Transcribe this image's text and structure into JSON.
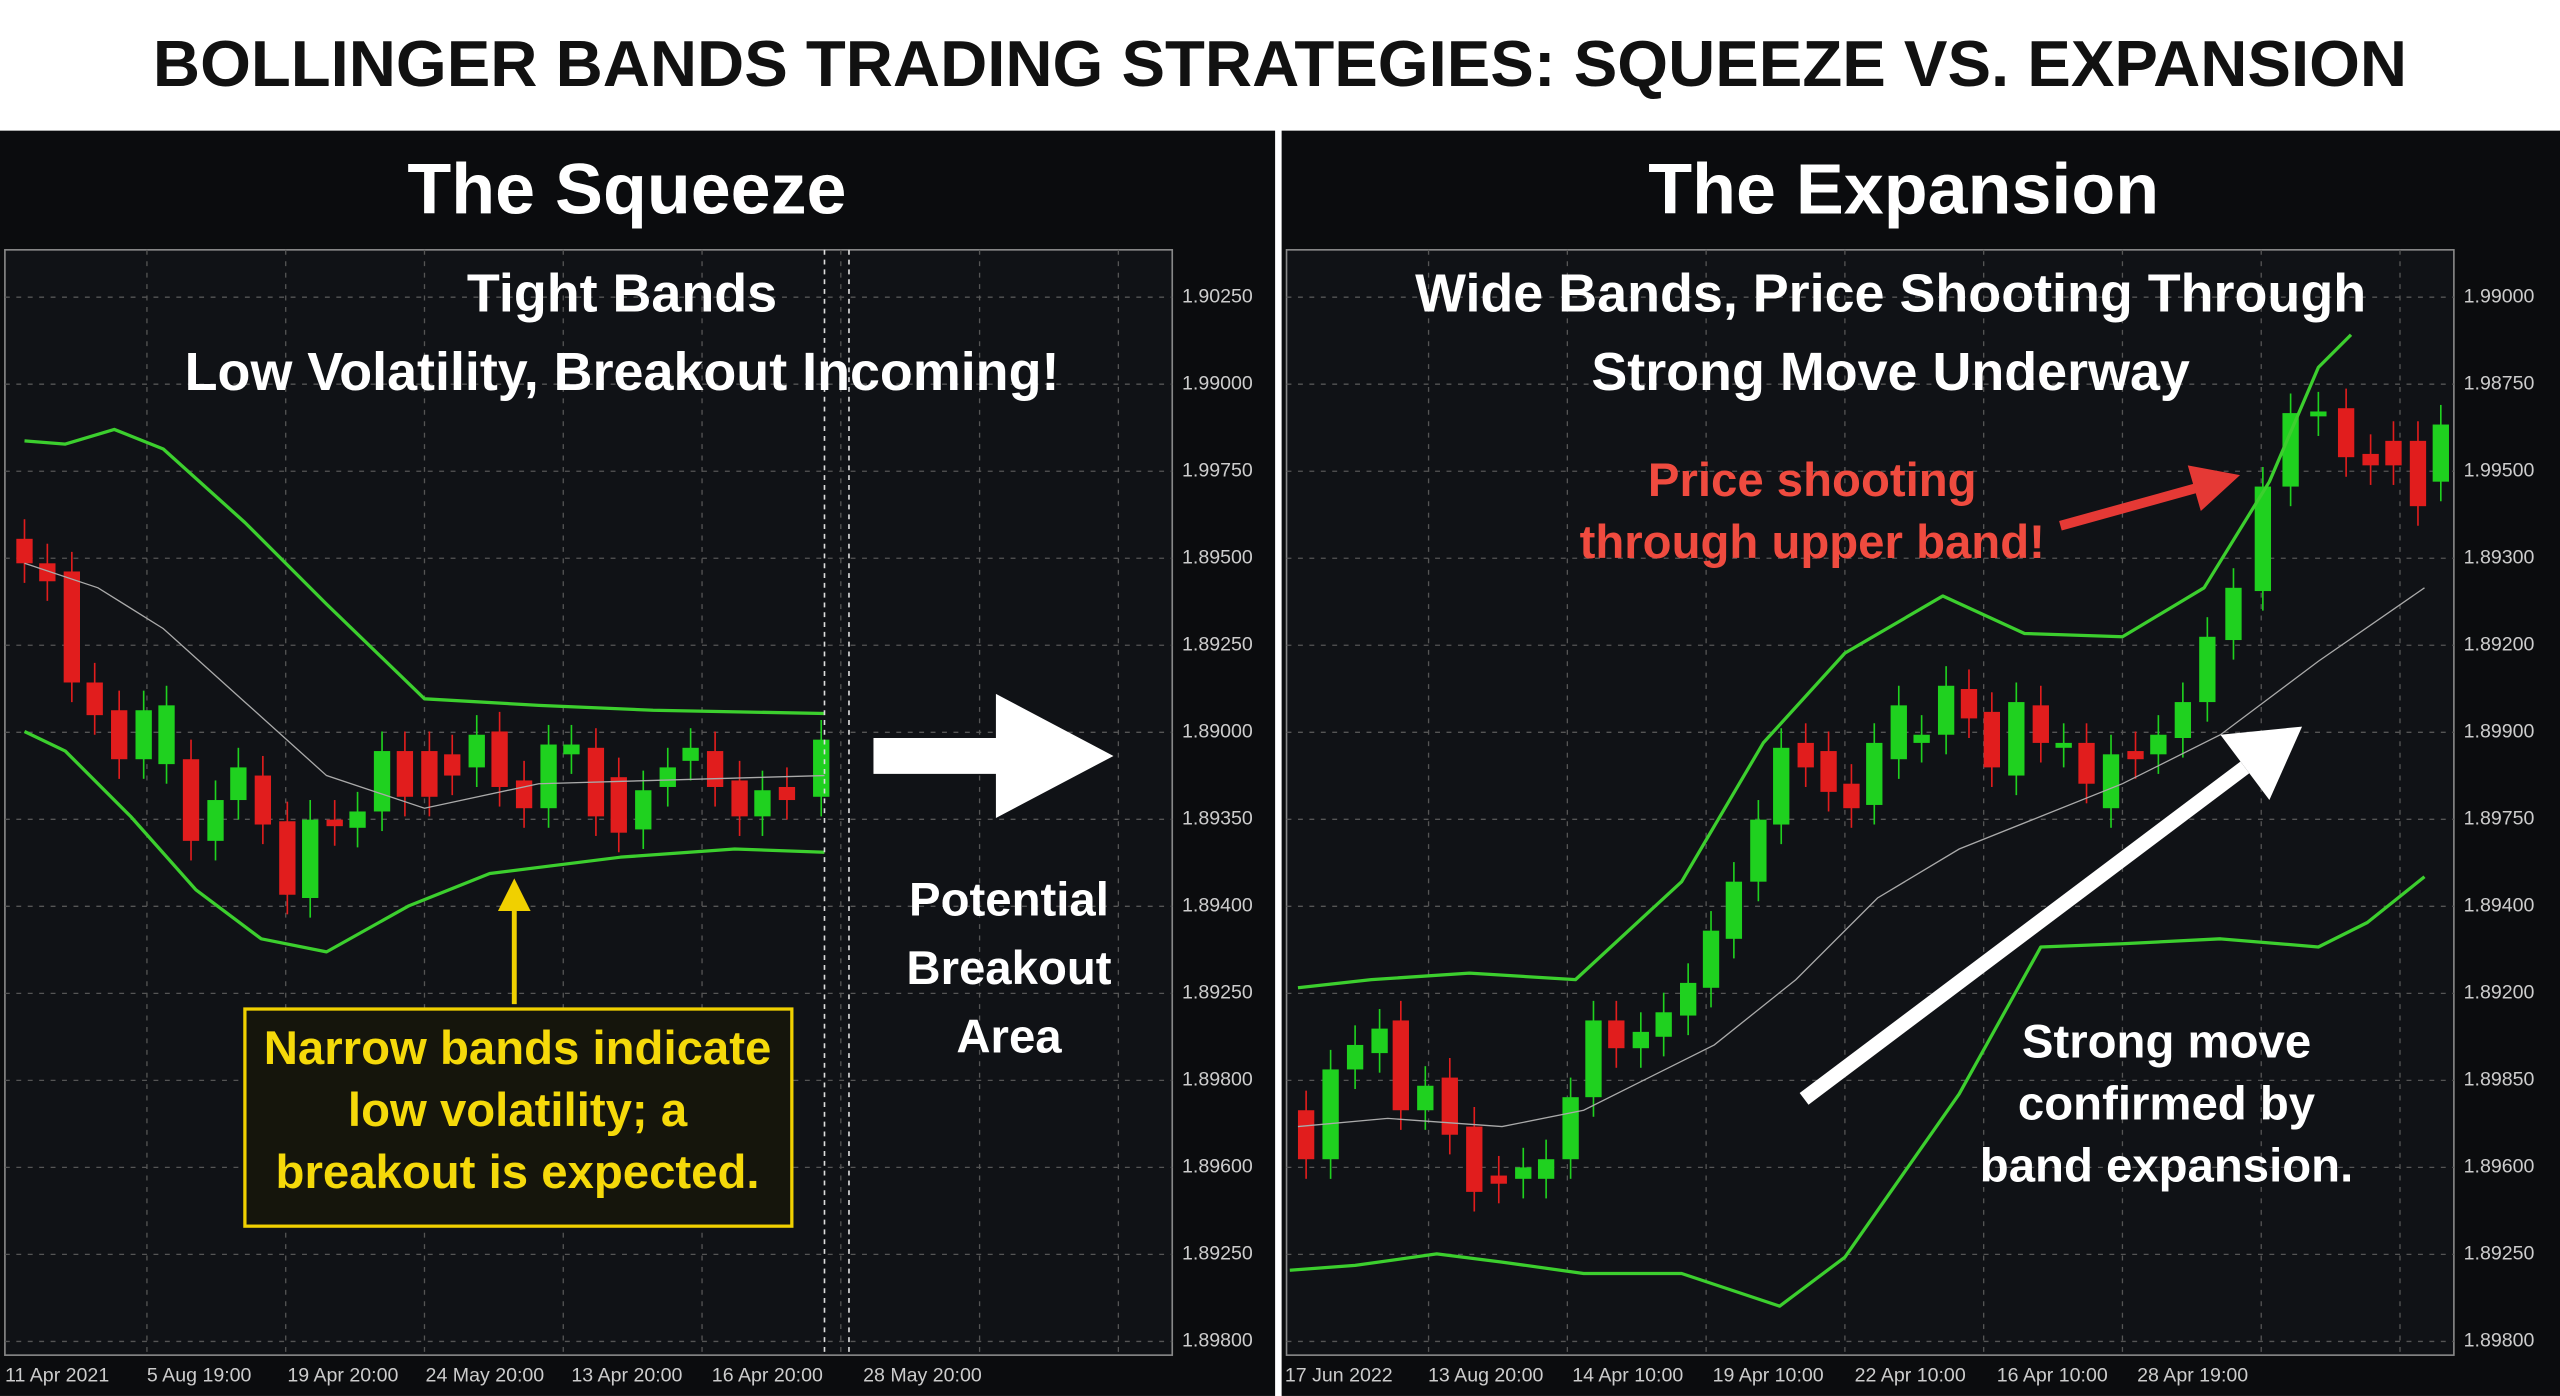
{
  "title": "BOLLINGER BANDS TRADING STRATEGIES: SQUEEZE VS. EXPANSION",
  "panels": [
    {
      "title": "The Squeeze",
      "headline": [
        "Tight Bands",
        "Low Volatility, Breakout Incoming!"
      ],
      "annotations": [
        {
          "lines": [
            "Narrow bands indicate",
            "low volatility; a",
            "breakout is expected."
          ]
        },
        {
          "lines": [
            "Potential",
            "Breakout",
            "Area"
          ]
        }
      ],
      "y_axis_labels": [
        "1.90250",
        "1.99000",
        "1.99750",
        "1.89500",
        "1.89250",
        "1.89000",
        "1.89350",
        "1.89400",
        "1.89250",
        "1.89800",
        "1.89600",
        "1.89250",
        "1.89800"
      ],
      "x_axis_labels": [
        "11 Apr 2021",
        "5 Aug 19:00",
        "19 Apr 20:00",
        "24 May 20:00",
        "13 Apr 20:00",
        "16 Apr 20:00",
        "28 May 20:00"
      ]
    },
    {
      "title": "The Expansion",
      "headline": [
        "Wide Bands, Price Shooting Through",
        "Strong Move Underway"
      ],
      "annotations": [
        {
          "lines": [
            "Price shooting",
            "through upper band!"
          ]
        },
        {
          "lines": [
            "Strong move",
            "confirmed by",
            "band expansion."
          ]
        }
      ],
      "y_axis_labels": [
        "1.99000",
        "1.98750",
        "1.99500",
        "1.89300",
        "1.89200",
        "1.89900",
        "1.89750",
        "1.89400",
        "1.89200",
        "1.89850",
        "1.89600",
        "1.89250",
        "1.89800"
      ],
      "x_axis_labels": [
        "17 Jun 2022",
        "13 Aug 20:00",
        "14 Apr 10:00",
        "19 Apr 10:00",
        "22 Apr 10:00",
        "16 Apr 10:00",
        "28 Apr 19:00"
      ]
    }
  ]
}
